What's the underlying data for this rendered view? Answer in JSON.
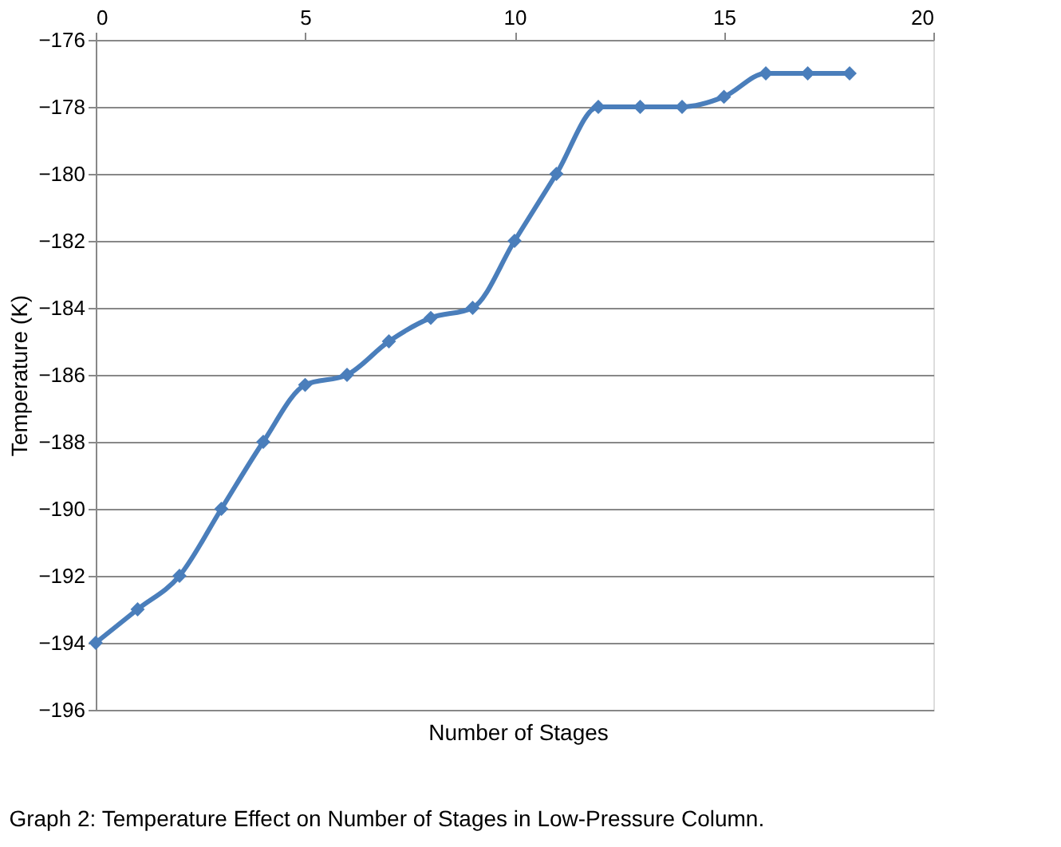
{
  "chart_data": {
    "type": "line",
    "xlabel": "Number of Stages",
    "ylabel": "Temperature (K)",
    "x": [
      0,
      1,
      2,
      3,
      4,
      5,
      6,
      7,
      8,
      9,
      10,
      11,
      12,
      13,
      14,
      15,
      16,
      17,
      18
    ],
    "series": [
      {
        "color": "#4a7ebb",
        "values": [
          -194,
          -193,
          -192,
          -190,
          -188,
          -186.3,
          -186,
          -185,
          -184.3,
          -184,
          -182,
          -180,
          -178,
          -178,
          -178,
          -177.7,
          -177,
          -177,
          -177
        ]
      }
    ],
    "xlim": [
      0,
      20
    ],
    "xticks": [
      0,
      5,
      10,
      15,
      20
    ],
    "ylim": [
      -196,
      -176
    ],
    "yticks": [
      -196,
      -194,
      -192,
      -190,
      -188,
      -186,
      -184,
      -182,
      -180,
      -178,
      -176
    ],
    "grid": "y",
    "marker": "diamond",
    "line_style": "solid",
    "annotations": [
      "Graph 2: Temperature Effect on Number of Stages in Low-Pressure Column."
    ]
  }
}
